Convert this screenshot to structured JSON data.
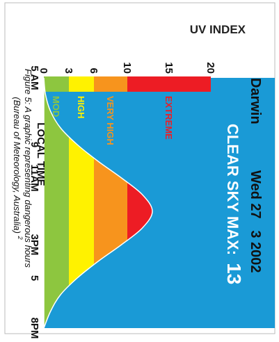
{
  "chart_data": {
    "type": "area",
    "title": "UV INDEX",
    "location": "Darwin",
    "date": "Wed 27   3 2002",
    "clear_sky_label": "CLEAR SKY MAX:",
    "clear_sky_max": "13",
    "xlabel": "LOCAL TIME",
    "ylabel": "UV INDEX",
    "x_ticks": [
      {
        "t": 5,
        "label": "5 AM"
      },
      {
        "t": 9,
        "label": "9"
      },
      {
        "t": 11,
        "label": "11AM"
      },
      {
        "t": 15,
        "label": "3PM"
      },
      {
        "t": 17,
        "label": "5"
      },
      {
        "t": 20,
        "label": "8PM"
      }
    ],
    "y_ticks": [
      0,
      3,
      6,
      10,
      15,
      20
    ],
    "xlim": [
      5,
      20
    ],
    "ylim": [
      0,
      20
    ],
    "bands": [
      {
        "name": "MOD",
        "from": 0,
        "to": 3,
        "color": "#8dc63f",
        "text_color": "#8dc63f"
      },
      {
        "name": "HIGH",
        "from": 3,
        "to": 6,
        "color": "#fff200",
        "text_color": "#fff200"
      },
      {
        "name": "VERY HIGH",
        "from": 6,
        "to": 10,
        "color": "#f7941d",
        "text_color": "#f7941d"
      },
      {
        "name": "EXTREME",
        "from": 10,
        "to": 20,
        "color": "#ed1c24",
        "text_color": "#ed1c24"
      }
    ],
    "series": [
      {
        "x": [
          5,
          6,
          7,
          8,
          9,
          10,
          11,
          12,
          13,
          14,
          15,
          16,
          17,
          18,
          19,
          20
        ],
        "y": [
          0,
          0.2,
          0.8,
          2.0,
          4.0,
          6.5,
          9.3,
          11.8,
          13,
          11.8,
          9.3,
          6.5,
          4.0,
          2.0,
          0.8,
          0
        ]
      }
    ],
    "background_color": "#1a9ad6"
  },
  "caption": {
    "line1": "Figure 5: A graphic representing dangerous hours",
    "line2": "(Bureau of Meteorology, Australia)",
    "superscript": "2"
  }
}
